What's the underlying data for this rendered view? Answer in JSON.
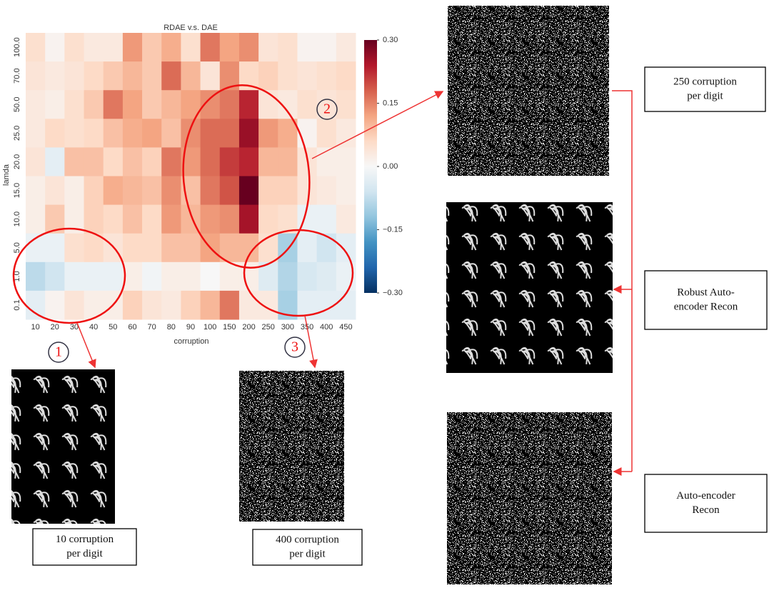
{
  "chart_data": {
    "type": "heatmap",
    "title": "RDAE v.s. DAE",
    "xlabel": "corruption",
    "ylabel": "lamda",
    "x_categories": [
      "10",
      "20",
      "30",
      "40",
      "50",
      "60",
      "70",
      "80",
      "90",
      "100",
      "150",
      "200",
      "250",
      "300",
      "350",
      "400",
      "450"
    ],
    "y_categories": [
      "100.0",
      "70.0",
      "50.0",
      "25.0",
      "20.0",
      "15.0",
      "10.0",
      "5.0",
      "1.0",
      "0.1"
    ],
    "values": [
      [
        0.05,
        0.01,
        0.05,
        0.03,
        0.03,
        0.13,
        0.08,
        0.11,
        0.05,
        0.16,
        0.12,
        0.14,
        0.04,
        0.05,
        0.01,
        0.01,
        0.03
      ],
      [
        0.04,
        0.03,
        0.04,
        0.06,
        0.08,
        0.1,
        0.08,
        0.17,
        0.1,
        0.04,
        0.14,
        0.06,
        0.07,
        0.05,
        0.04,
        0.05,
        0.06
      ],
      [
        0.03,
        0.02,
        0.05,
        0.08,
        0.16,
        0.12,
        0.08,
        0.1,
        0.12,
        0.14,
        0.16,
        0.23,
        0.04,
        0.03,
        0.05,
        0.04,
        0.05
      ],
      [
        0.03,
        0.06,
        0.05,
        0.06,
        0.09,
        0.11,
        0.12,
        0.09,
        0.14,
        0.17,
        0.17,
        0.26,
        0.13,
        0.11,
        0.01,
        0.05,
        0.03
      ],
      [
        0.04,
        -0.03,
        0.09,
        0.09,
        0.06,
        0.09,
        0.07,
        0.16,
        0.13,
        0.17,
        0.21,
        0.23,
        0.1,
        0.1,
        0.04,
        0.02,
        0.02
      ],
      [
        0.02,
        0.04,
        0.02,
        0.07,
        0.11,
        0.1,
        0.09,
        0.14,
        0.09,
        0.16,
        0.19,
        0.3,
        0.07,
        0.07,
        0.04,
        0.03,
        0.02
      ],
      [
        0.02,
        0.08,
        0.02,
        0.07,
        0.06,
        0.09,
        0.06,
        0.13,
        0.1,
        0.13,
        0.14,
        0.25,
        0.06,
        0.05,
        -0.02,
        -0.02,
        0.03
      ],
      [
        -0.02,
        -0.02,
        0.05,
        0.06,
        0.04,
        0.06,
        0.06,
        0.09,
        0.09,
        0.12,
        0.1,
        0.1,
        0.05,
        -0.1,
        -0.03,
        -0.06,
        -0.03
      ],
      [
        -0.08,
        -0.06,
        -0.02,
        -0.02,
        -0.02,
        0.02,
        -0.01,
        0.02,
        0.02,
        0.0,
        0.02,
        0.02,
        -0.04,
        -0.09,
        -0.05,
        -0.04,
        -0.02
      ],
      [
        -0.03,
        0.01,
        0.04,
        0.02,
        0.02,
        0.07,
        0.04,
        0.03,
        0.07,
        0.1,
        0.16,
        0.03,
        0.03,
        -0.1,
        -0.03,
        -0.03,
        -0.03
      ]
    ],
    "colormap": "RdBu_r",
    "vlim": [
      -0.3,
      0.3
    ],
    "cbar_ticks": [
      {
        "value": 0.3,
        "label": "0.30"
      },
      {
        "value": 0.15,
        "label": "0.15"
      },
      {
        "value": 0,
        "label": "0.00"
      },
      {
        "value": -0.15,
        "label": "−0.15"
      },
      {
        "value": -0.3,
        "label": "−0.30"
      }
    ]
  },
  "markers": [
    "1",
    "2",
    "3"
  ],
  "panels": [
    {
      "label": [
        "10 corruption",
        "per digit"
      ]
    },
    {
      "label": [
        "400 corruption",
        "per digit"
      ]
    },
    {
      "label": [
        "250 corruption",
        "per digit"
      ]
    },
    {
      "label": [
        "Robust Auto-",
        "encoder Recon"
      ]
    },
    {
      "label": [
        "Auto-encoder",
        "Recon"
      ]
    }
  ]
}
